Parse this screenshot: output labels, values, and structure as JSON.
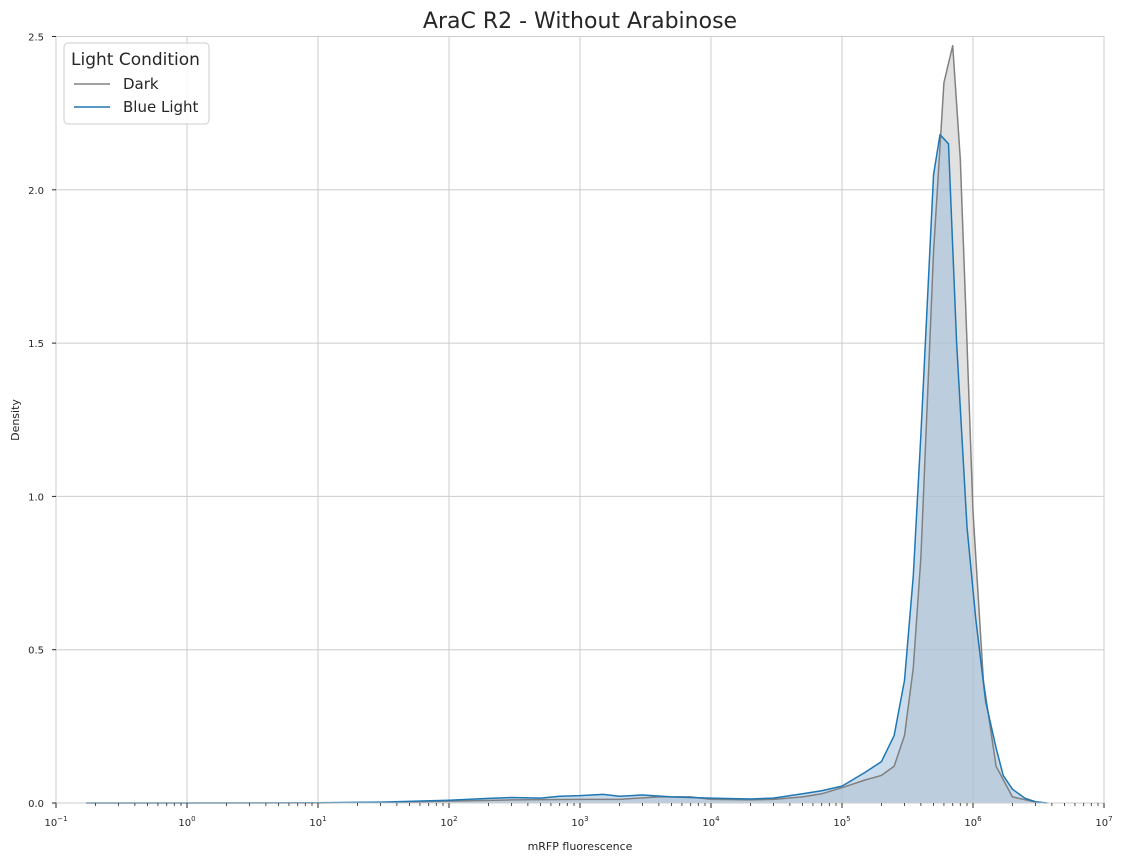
{
  "chart_data": {
    "type": "area",
    "title": "AraC R2 - Without Arabinose",
    "xlabel": "mRFP fluorescence",
    "ylabel": "Density",
    "x_scale": "log",
    "xlim": [
      0.1,
      10000000
    ],
    "ylim": [
      0,
      2.5
    ],
    "x_ticks": [
      {
        "base": "10",
        "exp": "−1"
      },
      {
        "base": "10",
        "exp": "0"
      },
      {
        "base": "10",
        "exp": "1"
      },
      {
        "base": "10",
        "exp": "2"
      },
      {
        "base": "10",
        "exp": "3"
      },
      {
        "base": "10",
        "exp": "4"
      },
      {
        "base": "10",
        "exp": "5"
      },
      {
        "base": "10",
        "exp": "6"
      },
      {
        "base": "10",
        "exp": "7"
      }
    ],
    "y_ticks": [
      "0.0",
      "0.5",
      "1.0",
      "1.5",
      "2.0",
      "2.5"
    ],
    "grid": true,
    "legend": {
      "title": "Light Condition",
      "position": "top-left",
      "entries": [
        "Dark",
        "Blue Light"
      ]
    },
    "series": [
      {
        "name": "Dark",
        "color": "#808080",
        "fill": "#c8c8c8",
        "points": [
          [
            0.17,
            0
          ],
          [
            1,
            0
          ],
          [
            10,
            0
          ],
          [
            30,
            0.002
          ],
          [
            100,
            0.006
          ],
          [
            300,
            0.01
          ],
          [
            1000,
            0.012
          ],
          [
            2000,
            0.012
          ],
          [
            4000,
            0.02
          ],
          [
            7000,
            0.02
          ],
          [
            10000,
            0.012
          ],
          [
            20000,
            0.01
          ],
          [
            30000,
            0.012
          ],
          [
            50000,
            0.02
          ],
          [
            70000,
            0.03
          ],
          [
            100000,
            0.05
          ],
          [
            150000,
            0.075
          ],
          [
            200000,
            0.09
          ],
          [
            250000,
            0.12
          ],
          [
            300000,
            0.22
          ],
          [
            350000,
            0.44
          ],
          [
            400000,
            0.8
          ],
          [
            500000,
            1.8
          ],
          [
            600000,
            2.35
          ],
          [
            700000,
            2.47
          ],
          [
            800000,
            2.1
          ],
          [
            900000,
            1.5
          ],
          [
            1000000,
            0.95
          ],
          [
            1200000,
            0.4
          ],
          [
            1500000,
            0.12
          ],
          [
            2000000,
            0.02
          ],
          [
            3000000,
            0.003
          ],
          [
            3600000,
            0
          ]
        ]
      },
      {
        "name": "Blue Light",
        "color": "#1f77b4",
        "fill": "#9fbfdc",
        "points": [
          [
            0.17,
            0
          ],
          [
            1,
            0
          ],
          [
            10,
            0.001
          ],
          [
            30,
            0.003
          ],
          [
            100,
            0.009
          ],
          [
            200,
            0.015
          ],
          [
            300,
            0.018
          ],
          [
            500,
            0.016
          ],
          [
            700,
            0.022
          ],
          [
            1000,
            0.024
          ],
          [
            1500,
            0.028
          ],
          [
            2000,
            0.022
          ],
          [
            3000,
            0.026
          ],
          [
            5000,
            0.02
          ],
          [
            7000,
            0.018
          ],
          [
            10000,
            0.016
          ],
          [
            20000,
            0.013
          ],
          [
            30000,
            0.016
          ],
          [
            50000,
            0.03
          ],
          [
            70000,
            0.04
          ],
          [
            100000,
            0.055
          ],
          [
            150000,
            0.1
          ],
          [
            200000,
            0.135
          ],
          [
            250000,
            0.22
          ],
          [
            300000,
            0.4
          ],
          [
            350000,
            0.74
          ],
          [
            400000,
            1.2
          ],
          [
            500000,
            2.05
          ],
          [
            560000,
            2.18
          ],
          [
            650000,
            2.15
          ],
          [
            750000,
            1.5
          ],
          [
            900000,
            0.9
          ],
          [
            1050000,
            0.6
          ],
          [
            1250000,
            0.33
          ],
          [
            1500000,
            0.18
          ],
          [
            1700000,
            0.09
          ],
          [
            2000000,
            0.045
          ],
          [
            2500000,
            0.015
          ],
          [
            3000000,
            0.004
          ],
          [
            3700000,
            0
          ]
        ]
      }
    ]
  }
}
